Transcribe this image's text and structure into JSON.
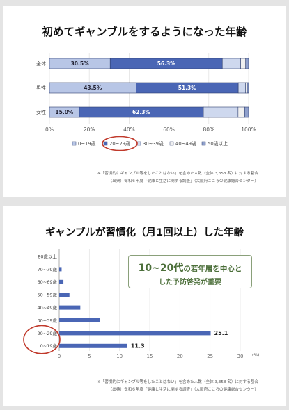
{
  "panel1": {
    "title": "初めてギャンブルをするようになった年齢",
    "note1": "※「習慣的にギャンブル等をしたことはない」を含めた人数（全体 3,358 名）に対する割合",
    "note2": "（出典）令和６年度「健康と生活に関する調査」（大阪府こころの健康総合センター）"
  },
  "panel2": {
    "title": "ギャンブルが習慣化（月1回以上）した年齢",
    "callout_big": "10~20代",
    "callout_rest": "の若年層を中心と",
    "callout_line2": "した予防啓発が重要",
    "unit": "(%)",
    "note1": "※「習慣的にギャンブル等をしたことはない」を含めた人数（全体 3,358 名）に対する割合",
    "note2": "（出典）令和６年度「健康と生活に関する調査」（大阪府こころの健康総合センター）"
  },
  "chart_data": [
    {
      "type": "bar",
      "orientation": "horizontal-stacked",
      "categories": [
        "全体",
        "男性",
        "女性"
      ],
      "series": [
        {
          "name": "0~19歳",
          "values": [
            30.5,
            43.5,
            15.0
          ],
          "color": "#b8c6e6"
        },
        {
          "name": "20~29歳",
          "values": [
            56.3,
            51.3,
            62.3
          ],
          "color": "#4a66b5"
        },
        {
          "name": "30~39歳",
          "values": [
            9.2,
            3.7,
            17.4
          ],
          "color": "#ced8ee"
        },
        {
          "name": "40~49歳",
          "values": [
            2.5,
            0.8,
            3.3
          ],
          "color": "#f0f0f0"
        },
        {
          "name": "50歳以上",
          "values": [
            1.5,
            0.7,
            2.0
          ],
          "color": "#8fa0cc"
        }
      ],
      "data_labels": [
        [
          "30.5%",
          "56.3%"
        ],
        [
          "43.5%",
          "51.3%"
        ],
        [
          "15.0%",
          "62.3%"
        ]
      ],
      "xticks": [
        "0%",
        "20%",
        "40%",
        "60%",
        "80%",
        "100%"
      ],
      "xlim": [
        0,
        100
      ],
      "legend": "bottom",
      "highlighted_legend_item": "20~29歳"
    },
    {
      "type": "bar",
      "orientation": "horizontal",
      "categories": [
        "80歳以上",
        "70~79歳",
        "60~69歳",
        "50~59歳",
        "40~49歳",
        "30~39歳",
        "20~29歳",
        "0~19歳"
      ],
      "values": [
        0,
        0.4,
        0.7,
        1.7,
        3.5,
        6.8,
        25.1,
        11.3
      ],
      "data_labels": [
        "",
        "",
        "",
        "",
        "",
        "",
        "25.1",
        "11.3"
      ],
      "xticks": [
        "0",
        "5",
        "10",
        "15",
        "20",
        "25",
        "30"
      ],
      "xlim": [
        0,
        30
      ],
      "color": "#4a66b5",
      "highlighted_categories": [
        "20~29歳",
        "0~19歳"
      ]
    }
  ]
}
